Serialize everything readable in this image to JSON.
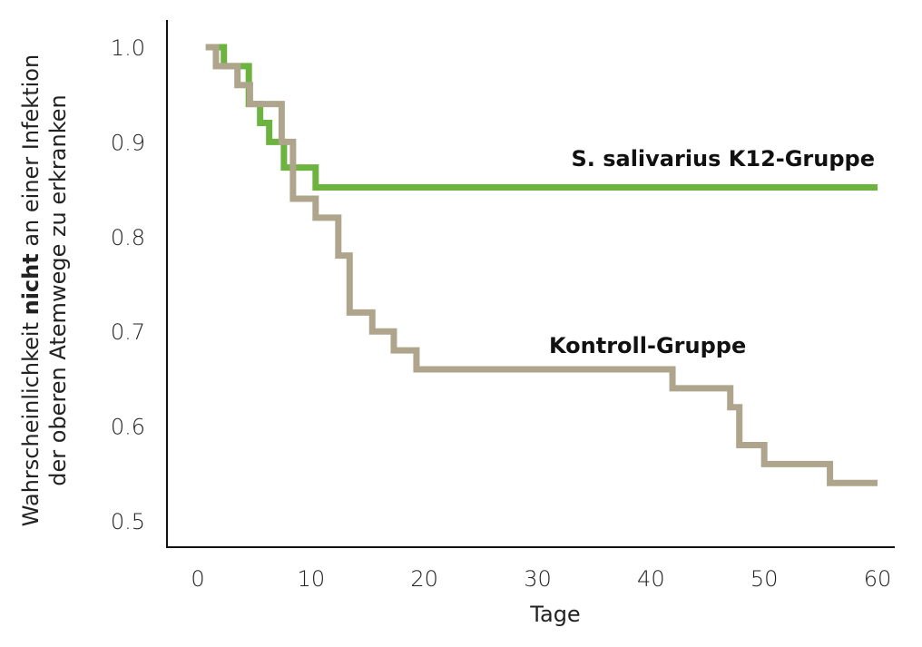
{
  "chart_data": {
    "type": "line",
    "subtype": "kaplan-meier-step",
    "title": "",
    "xlabel": "Tage",
    "ylabel_line1_pre": "Wahrscheinlichkeit ",
    "ylabel_line1_bold": "nicht",
    "ylabel_line1_post": " an einer Infektion",
    "ylabel_line2": "der oberen Atemwege zu erkranken",
    "xlim": [
      -2.7,
      61.5
    ],
    "ylim": [
      0.47,
      1.03
    ],
    "xticks": [
      0,
      10,
      20,
      30,
      40,
      50,
      60
    ],
    "yticks": [
      "0.5",
      "0.6",
      "0.7",
      "0.8",
      "0.9",
      "1.0"
    ],
    "grid": false,
    "series": [
      {
        "name": "S. salivarius K12-Gruppe",
        "color": "#6db33f",
        "x": [
          0.7,
          2.3,
          4.5,
          5.5,
          6.3,
          7.6,
          10.4,
          60
        ],
        "y": [
          1.0,
          0.98,
          0.94,
          0.92,
          0.9,
          0.873,
          0.852,
          0.852
        ]
      },
      {
        "name": "Kontroll-Gruppe",
        "color": "#aea58c",
        "x": [
          0.7,
          1.6,
          3.5,
          4.6,
          7.4,
          8.4,
          10.4,
          12.4,
          13.4,
          15.4,
          17.3,
          19.3,
          41.9,
          47.0,
          47.8,
          50.0,
          55.8,
          60
        ],
        "y": [
          1.0,
          0.98,
          0.96,
          0.94,
          0.9,
          0.84,
          0.82,
          0.78,
          0.72,
          0.7,
          0.68,
          0.66,
          0.64,
          0.62,
          0.58,
          0.56,
          0.54,
          0.54
        ]
      }
    ]
  }
}
